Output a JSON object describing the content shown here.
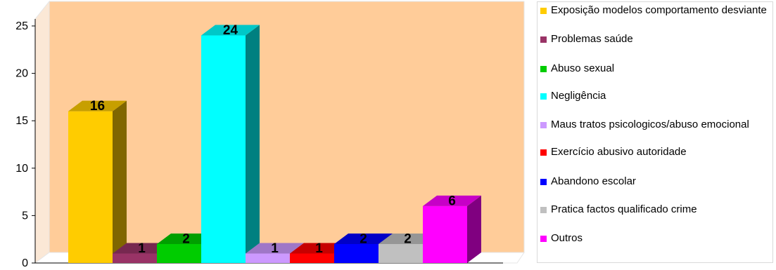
{
  "chart_data": {
    "type": "bar",
    "title": "",
    "xlabel": "",
    "ylabel": "",
    "ylim": [
      0,
      25
    ],
    "yticks": [
      0,
      5,
      10,
      15,
      20,
      25
    ],
    "three_d": true,
    "plot_background": "#ffcc99",
    "legend_position": "right",
    "series": [
      {
        "name": "Exposição modelos comportamento desviante",
        "value": 16,
        "color": "#ffcc00"
      },
      {
        "name": "Problemas saúde",
        "value": 1,
        "color": "#993366"
      },
      {
        "name": "Abuso sexual",
        "value": 2,
        "color": "#00cc00"
      },
      {
        "name": "Negligência",
        "value": 24,
        "color": "#00ffff"
      },
      {
        "name": "Maus tratos psicologicos/abuso emocional",
        "value": 1,
        "color": "#cc99ff"
      },
      {
        "name": "Exercício abusivo autoridade",
        "value": 1,
        "color": "#ff0000"
      },
      {
        "name": "Abandono escolar",
        "value": 2,
        "color": "#0000ff"
      },
      {
        "name": "Pratica factos qualificado crime",
        "value": 2,
        "color": "#c0c0c0"
      },
      {
        "name": "Outros",
        "value": 6,
        "color": "#ff00ff"
      }
    ]
  }
}
